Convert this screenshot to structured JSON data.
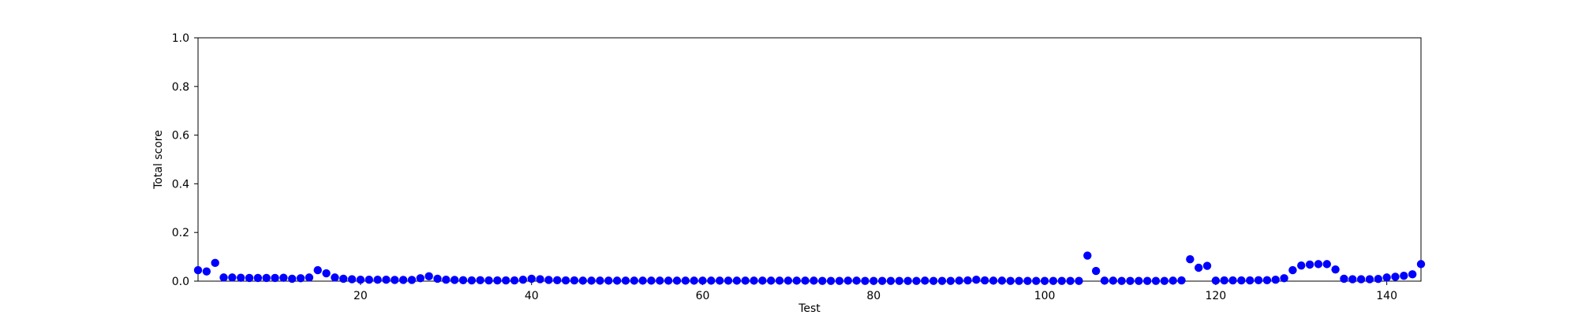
{
  "chart_data": {
    "type": "scatter",
    "title": "",
    "xlabel": "Test",
    "ylabel": "Total score",
    "xlim": [
      1,
      144
    ],
    "ylim": [
      0.0,
      1.0
    ],
    "grid": false,
    "marker_color": "#0000ff",
    "x_ticks": [
      20,
      40,
      60,
      80,
      100,
      120,
      140
    ],
    "x_tick_labels": [
      "20",
      "40",
      "60",
      "80",
      "100",
      "120",
      "140"
    ],
    "y_ticks": [
      0.0,
      0.2,
      0.4,
      0.6,
      0.8,
      1.0
    ],
    "y_tick_labels": [
      "0.0",
      "0.2",
      "0.4",
      "0.6",
      "0.8",
      "1.0"
    ],
    "x": [
      1,
      2,
      3,
      4,
      5,
      6,
      7,
      8,
      9,
      10,
      11,
      12,
      13,
      14,
      15,
      16,
      17,
      18,
      19,
      20,
      21,
      22,
      23,
      24,
      25,
      26,
      27,
      28,
      29,
      30,
      31,
      32,
      33,
      34,
      35,
      36,
      37,
      38,
      39,
      40,
      41,
      42,
      43,
      44,
      45,
      46,
      47,
      48,
      49,
      50,
      51,
      52,
      53,
      54,
      55,
      56,
      57,
      58,
      59,
      60,
      61,
      62,
      63,
      64,
      65,
      66,
      67,
      68,
      69,
      70,
      71,
      72,
      73,
      74,
      75,
      76,
      77,
      78,
      79,
      80,
      81,
      82,
      83,
      84,
      85,
      86,
      87,
      88,
      89,
      90,
      91,
      92,
      93,
      94,
      95,
      96,
      97,
      98,
      99,
      100,
      101,
      102,
      103,
      104,
      105,
      106,
      107,
      108,
      109,
      110,
      111,
      112,
      113,
      114,
      115,
      116,
      117,
      118,
      119,
      120,
      121,
      122,
      123,
      124,
      125,
      126,
      127,
      128,
      129,
      130,
      131,
      132,
      133,
      134,
      135,
      136,
      137,
      138,
      139,
      140,
      141,
      142,
      143,
      144
    ],
    "y": [
      0.045,
      0.04,
      0.075,
      0.015,
      0.015,
      0.014,
      0.013,
      0.013,
      0.013,
      0.013,
      0.014,
      0.01,
      0.012,
      0.015,
      0.045,
      0.032,
      0.015,
      0.01,
      0.008,
      0.006,
      0.006,
      0.006,
      0.006,
      0.005,
      0.005,
      0.005,
      0.012,
      0.02,
      0.01,
      0.006,
      0.005,
      0.004,
      0.003,
      0.004,
      0.003,
      0.003,
      0.003,
      0.003,
      0.006,
      0.01,
      0.008,
      0.005,
      0.004,
      0.003,
      0.003,
      0.002,
      0.002,
      0.002,
      0.002,
      0.002,
      0.002,
      0.002,
      0.002,
      0.002,
      0.002,
      0.002,
      0.002,
      0.002,
      0.002,
      0.002,
      0.002,
      0.002,
      0.002,
      0.002,
      0.002,
      0.002,
      0.002,
      0.002,
      0.002,
      0.002,
      0.002,
      0.002,
      0.002,
      0.001,
      0.001,
      0.001,
      0.002,
      0.002,
      0.001,
      0.001,
      0.001,
      0.001,
      0.001,
      0.001,
      0.001,
      0.002,
      0.001,
      0.001,
      0.001,
      0.002,
      0.003,
      0.006,
      0.003,
      0.002,
      0.002,
      0.001,
      0.001,
      0.001,
      0.001,
      0.001,
      0.001,
      0.001,
      0.001,
      0.001,
      0.105,
      0.042,
      0.002,
      0.002,
      0.001,
      0.001,
      0.001,
      0.001,
      0.001,
      0.001,
      0.002,
      0.003,
      0.09,
      0.055,
      0.063,
      0.002,
      0.003,
      0.003,
      0.003,
      0.003,
      0.004,
      0.004,
      0.006,
      0.012,
      0.045,
      0.064,
      0.068,
      0.07,
      0.07,
      0.048,
      0.01,
      0.008,
      0.008,
      0.008,
      0.009,
      0.015,
      0.018,
      0.022,
      0.028,
      0.07
    ]
  }
}
